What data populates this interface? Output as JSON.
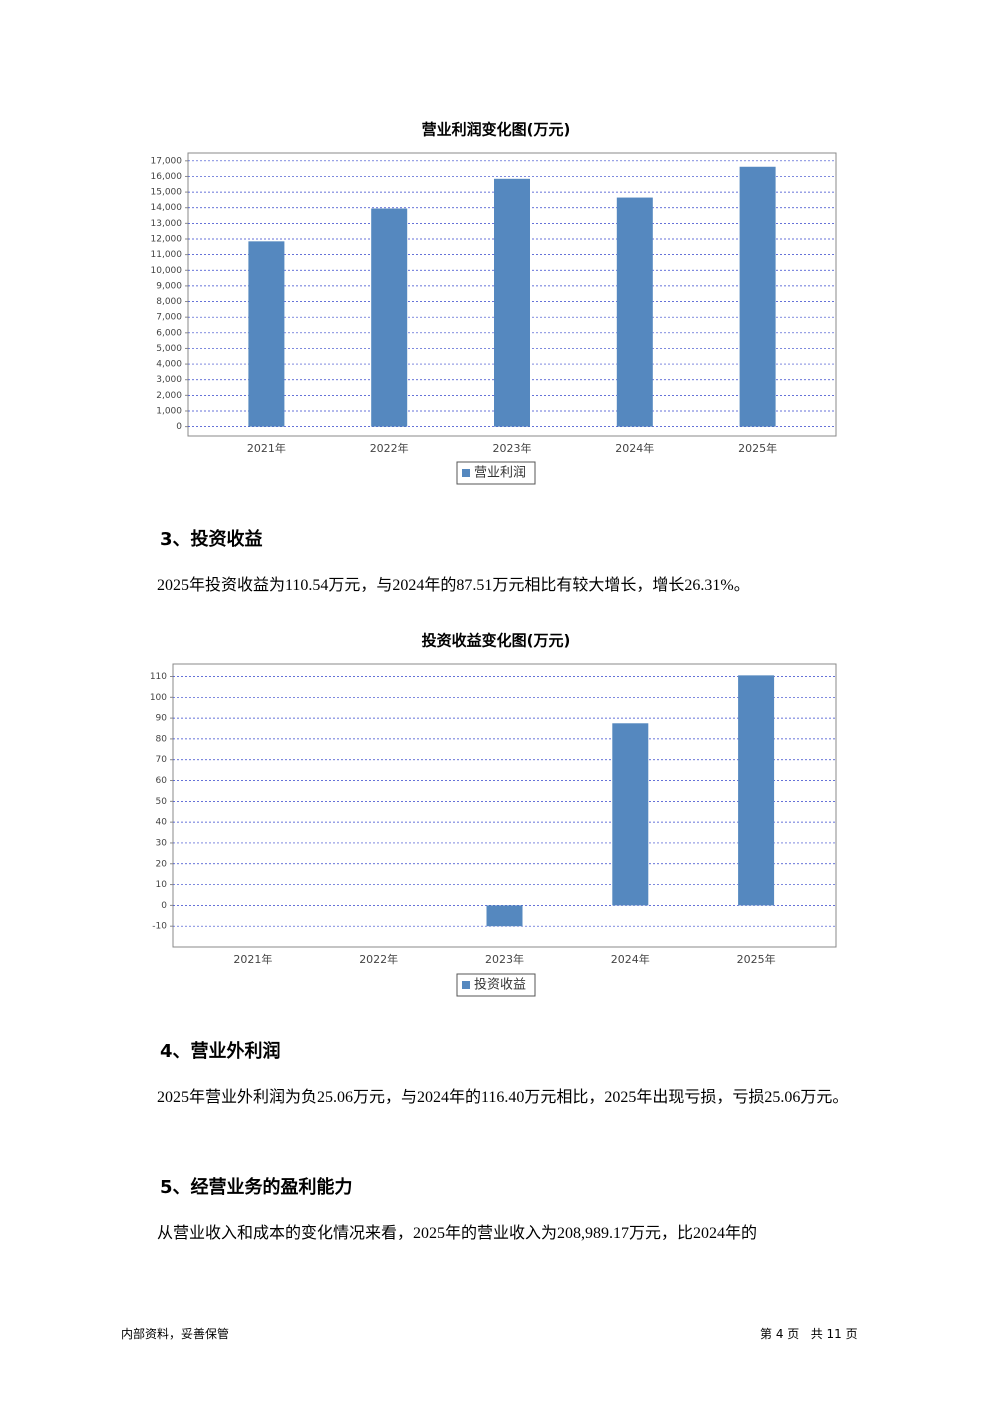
{
  "chart_data": [
    {
      "type": "bar",
      "title": "营业利润变化图(万元)",
      "categories": [
        "2021年",
        "2022年",
        "2023年",
        "2024年",
        "2025年"
      ],
      "series": [
        {
          "name": "营业利润",
          "color": "#5588bf",
          "values": [
            11850,
            13950,
            15850,
            14650,
            16620
          ]
        }
      ],
      "ylim": [
        -600,
        17500
      ],
      "yticks": [
        0,
        {
          "value": 1000,
          "label": "1,000"
        },
        {
          "value": 2000,
          "label": "2,000"
        },
        {
          "value": 3000,
          "label": "3,000"
        },
        {
          "value": 4000,
          "label": "4,000"
        },
        {
          "value": 5000,
          "label": "5,000"
        },
        {
          "value": 6000,
          "label": "6,000"
        },
        {
          "value": 7000,
          "label": "7,000"
        },
        {
          "value": 8000,
          "label": "8,000"
        },
        {
          "value": 9000,
          "label": "9,000"
        },
        {
          "value": 10000,
          "label": "10,000"
        },
        {
          "value": 11000,
          "label": "11,000"
        },
        {
          "value": 12000,
          "label": "12,000"
        },
        {
          "value": 13000,
          "label": "13,000"
        },
        {
          "value": 14000,
          "label": "14,000"
        },
        {
          "value": 15000,
          "label": "15,000"
        },
        {
          "value": 16000,
          "label": "16,000"
        },
        {
          "value": 17000,
          "label": "17,000"
        }
      ],
      "grid": true
    },
    {
      "type": "bar",
      "title": "投资收益变化图(万元)",
      "categories": [
        "2021年",
        "2022年",
        "2023年",
        "2024年",
        "2025年"
      ],
      "series": [
        {
          "name": "投资收益",
          "color": "#5588bf",
          "values": [
            0,
            0,
            -10,
            87.51,
            110.54
          ]
        }
      ],
      "ylim": [
        -20,
        116
      ],
      "yticks": [
        -10,
        0,
        10,
        20,
        30,
        40,
        50,
        60,
        70,
        80,
        90,
        100,
        110
      ],
      "grid": true
    }
  ],
  "sections": [
    {
      "heading": "3、投资收益",
      "text": "2025年投资收益为110.54万元，与2024年的87.51万元相比有较大增长，增长26.31%。"
    },
    {
      "heading": "4、营业外利润",
      "text": "2025年营业外利润为负25.06万元，与2024年的116.40万元相比，2025年出现亏损，亏损25.06万元。"
    },
    {
      "heading": "5、经营业务的盈利能力",
      "text": "从营业收入和成本的变化情况来看，2025年的营业收入为208,989.17万元，比2024年的"
    }
  ],
  "footer": {
    "left": "内部资料，妥善保管",
    "right": "第 4 页   共 11 页"
  }
}
